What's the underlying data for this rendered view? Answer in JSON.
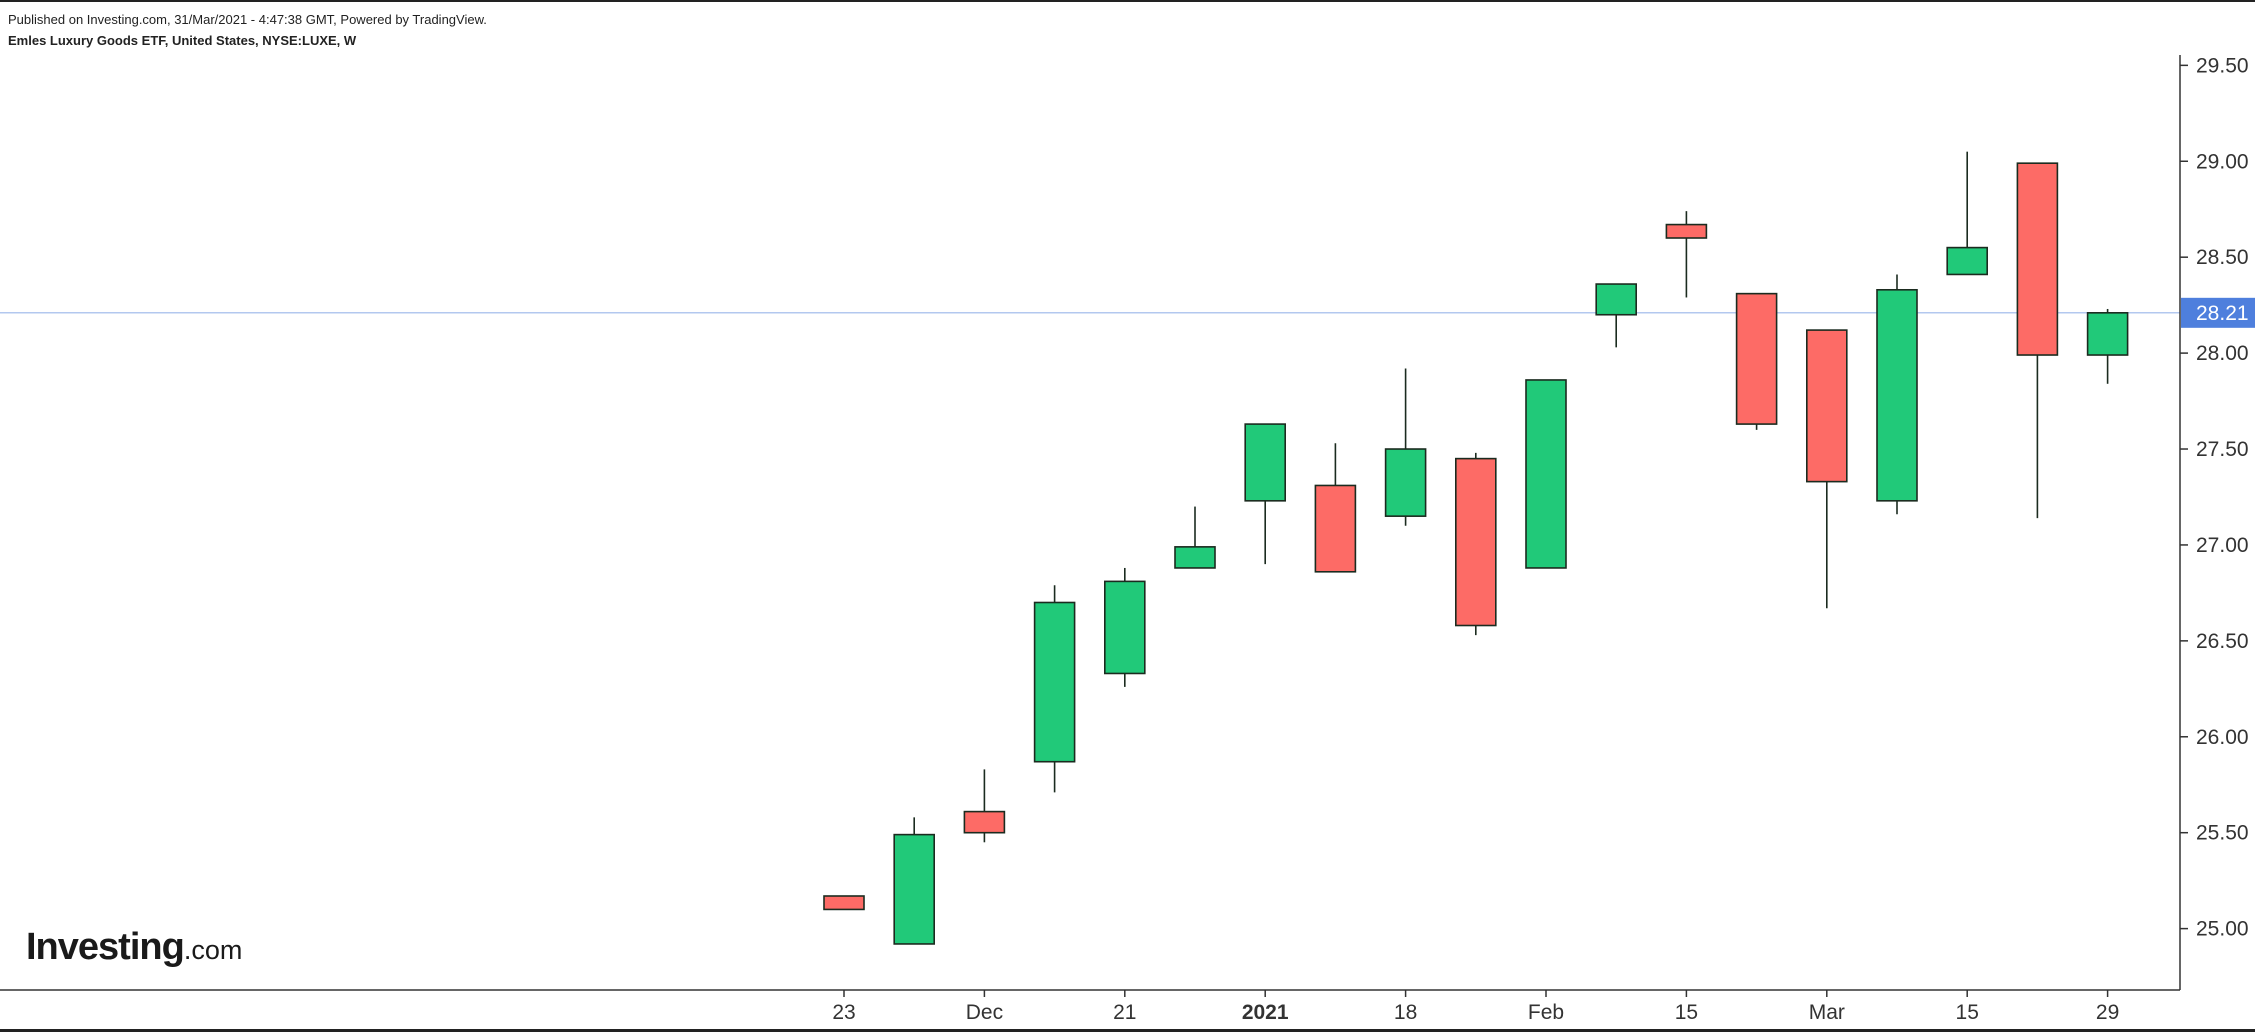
{
  "header": {
    "published": "Published on Investing.com, 31/Mar/2021 - 4:47:38 GMT, Powered by TradingView.",
    "instrument": "Emles Luxury Goods ETF, United States, NYSE:LUXE, W"
  },
  "logo": {
    "main": "Investing",
    "suffix": ".com"
  },
  "colors": {
    "up": "#21c979",
    "down": "#fd6b66",
    "outline": "#1b2b1f",
    "price_line": "#9ab6ea",
    "price_label": "#4e7fdd",
    "axis": "#333333"
  },
  "chart_data": {
    "type": "candlestick",
    "interval": "W",
    "ylim": [
      24.68,
      29.58
    ],
    "y_ticks": [
      25.0,
      25.5,
      26.0,
      26.5,
      27.0,
      27.5,
      28.0,
      28.5,
      29.0,
      29.5
    ],
    "y_tick_labels": [
      "25.00",
      "25.50",
      "26.00",
      "26.50",
      "27.00",
      "27.50",
      "28.00",
      "28.50",
      "29.00",
      "29.50"
    ],
    "x_labels": [
      {
        "label": "23",
        "index": 0,
        "bold": false
      },
      {
        "label": "Dec",
        "index": 2,
        "bold": false
      },
      {
        "label": "21",
        "index": 4,
        "bold": false
      },
      {
        "label": "2021",
        "index": 6,
        "bold": true
      },
      {
        "label": "18",
        "index": 8,
        "bold": false
      },
      {
        "label": "Feb",
        "index": 10,
        "bold": false
      },
      {
        "label": "15",
        "index": 12,
        "bold": false
      },
      {
        "label": "Mar",
        "index": 14,
        "bold": false
      },
      {
        "label": "15",
        "index": 16,
        "bold": false
      },
      {
        "label": "29",
        "index": 18,
        "bold": false
      }
    ],
    "last_price": 28.21,
    "last_price_label": "28.21",
    "candles": [
      {
        "open": 25.17,
        "high": 25.17,
        "low": 25.1,
        "close": 25.1
      },
      {
        "open": 24.92,
        "high": 25.58,
        "low": 24.92,
        "close": 25.49
      },
      {
        "open": 25.61,
        "high": 25.83,
        "low": 25.45,
        "close": 25.5
      },
      {
        "open": 25.87,
        "high": 26.79,
        "low": 25.71,
        "close": 26.7
      },
      {
        "open": 26.33,
        "high": 26.88,
        "low": 26.26,
        "close": 26.81
      },
      {
        "open": 26.88,
        "high": 27.2,
        "low": 26.88,
        "close": 26.99
      },
      {
        "open": 27.23,
        "high": 27.63,
        "low": 26.9,
        "close": 27.63
      },
      {
        "open": 27.31,
        "high": 27.53,
        "low": 26.86,
        "close": 26.86
      },
      {
        "open": 27.15,
        "high": 27.92,
        "low": 27.1,
        "close": 27.5
      },
      {
        "open": 27.45,
        "high": 27.48,
        "low": 26.53,
        "close": 26.58
      },
      {
        "open": 26.88,
        "high": 27.86,
        "low": 26.88,
        "close": 27.86
      },
      {
        "open": 28.2,
        "high": 28.36,
        "low": 28.03,
        "close": 28.36
      },
      {
        "open": 28.67,
        "high": 28.74,
        "low": 28.29,
        "close": 28.6
      },
      {
        "open": 28.31,
        "high": 28.31,
        "low": 27.6,
        "close": 27.63
      },
      {
        "open": 28.12,
        "high": 28.12,
        "low": 26.67,
        "close": 27.33
      },
      {
        "open": 27.23,
        "high": 28.41,
        "low": 27.16,
        "close": 28.33
      },
      {
        "open": 28.41,
        "high": 29.05,
        "low": 28.41,
        "close": 28.55
      },
      {
        "open": 28.99,
        "high": 28.99,
        "low": 27.14,
        "close": 27.99
      },
      {
        "open": 27.99,
        "high": 28.23,
        "low": 27.84,
        "close": 28.21
      }
    ]
  }
}
